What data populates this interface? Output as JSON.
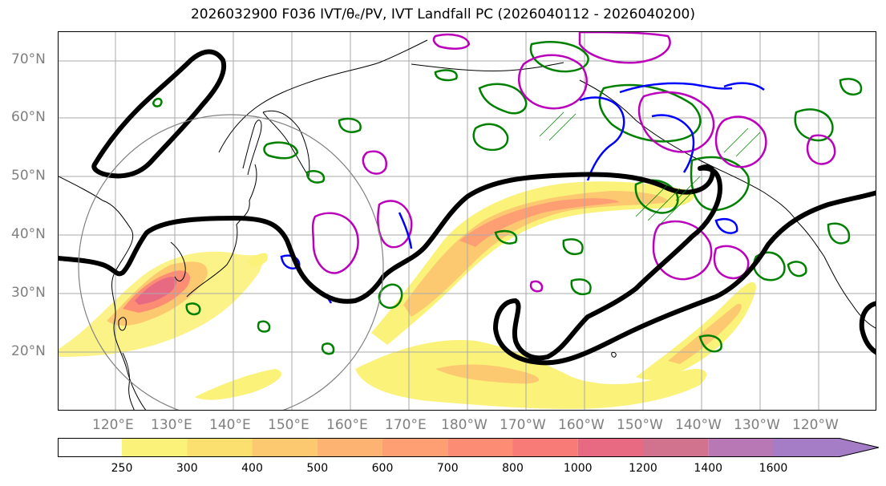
{
  "title_text": "2026032900 F036 IVT/θₑ/PV, IVT Landfall PC (2026040112 - 2026040200)",
  "lat_labels": [
    "70°N",
    "60°N",
    "50°N",
    "40°N",
    "30°N",
    "20°N"
  ],
  "lon_labels": [
    "120°E",
    "130°E",
    "140°E",
    "150°E",
    "160°E",
    "170°E",
    "180°W",
    "170°W",
    "160°W",
    "150°W",
    "140°W",
    "130°W",
    "120°W"
  ],
  "colorbar": {
    "ticks": [
      "250",
      "300",
      "400",
      "500",
      "600",
      "700",
      "800",
      "1000",
      "1200",
      "1400",
      "1600"
    ],
    "colors": [
      "#ffffff",
      "#fbf27a",
      "#fbe070",
      "#fcc970",
      "#fdb472",
      "#fd9f73",
      "#fc8c74",
      "#f87b78",
      "#e76a82",
      "#d1728f",
      "#b878b5",
      "#a57cc6"
    ]
  },
  "map": {
    "contour_color_thick": "#000000",
    "pv_color_green": "#008000",
    "pv_color_magenta": "#bb00bb",
    "pv_color_blue": "#0000ff"
  }
}
